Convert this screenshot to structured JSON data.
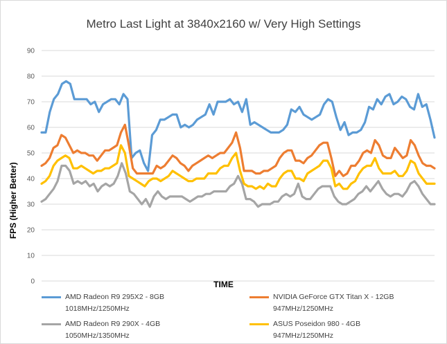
{
  "chart_data": {
    "type": "line",
    "title": "Metro Last Light at 3840x2160 w/ Very High Settings",
    "xlabel": "TIME",
    "ylabel": "FPS (Higher Better)",
    "ylim": [
      0,
      90
    ],
    "yticks": [
      0,
      10,
      20,
      30,
      40,
      50,
      60,
      70,
      80,
      90
    ],
    "grid": true,
    "legend_position": "bottom",
    "series": [
      {
        "name": "AMD Radeon R9 295X2 - 8GB",
        "detail": "1018MHz/1250MHz",
        "color": "#5b9bd5",
        "values": [
          58,
          58,
          66,
          71,
          73,
          77,
          78,
          77,
          71,
          71,
          71,
          71,
          69,
          70,
          66,
          69,
          70,
          71,
          71,
          69,
          73,
          71,
          48,
          50,
          51,
          46,
          43,
          57,
          59,
          63,
          63,
          64,
          65,
          65,
          60,
          61,
          60,
          61,
          63,
          64,
          65,
          69,
          65,
          70,
          70,
          70,
          71,
          69,
          70,
          66,
          71,
          61,
          62,
          61,
          60,
          59,
          58,
          58,
          58,
          59,
          61,
          67,
          66,
          68,
          65,
          64,
          63,
          64,
          65,
          69,
          71,
          70,
          64,
          59,
          62,
          57,
          58,
          58,
          59,
          62,
          68,
          67,
          71,
          69,
          72,
          73,
          69,
          70,
          72,
          71,
          68,
          67,
          73,
          68,
          69,
          63,
          56
        ]
      },
      {
        "name": "NVIDIA GeForce GTX Titan X - 12GB",
        "detail": "947MHz/1250MHz",
        "color": "#ed7d31",
        "values": [
          45,
          46,
          48,
          52,
          53,
          57,
          56,
          53,
          50,
          51,
          50,
          50,
          49,
          49,
          47,
          49,
          51,
          51,
          52,
          53,
          58,
          61,
          53,
          44,
          42,
          42,
          42,
          42,
          42,
          45,
          44,
          45,
          47,
          49,
          48,
          46,
          45,
          43,
          45,
          46,
          47,
          48,
          49,
          48,
          49,
          50,
          50,
          52,
          54,
          58,
          52,
          43,
          43,
          43,
          42,
          42,
          43,
          43,
          44,
          45,
          48,
          50,
          51,
          51,
          47,
          47,
          46,
          48,
          49,
          51,
          53,
          54,
          54,
          48,
          41,
          43,
          41,
          42,
          45,
          45,
          47,
          50,
          51,
          50,
          55,
          53,
          49,
          48,
          48,
          52,
          50,
          48,
          49,
          55,
          53,
          49,
          46,
          45,
          45,
          44
        ]
      },
      {
        "name": "AMD Radeon R9 290X - 4GB",
        "detail": "1050MHz/1350MHz",
        "color": "#a5a5a5",
        "values": [
          31,
          32,
          34,
          36,
          39,
          45,
          45,
          43,
          38,
          39,
          38,
          39,
          37,
          38,
          35,
          37,
          38,
          37,
          38,
          41,
          46,
          42,
          35,
          34,
          32,
          30,
          32,
          29,
          33,
          35,
          33,
          32,
          33,
          33,
          33,
          33,
          32,
          31,
          32,
          33,
          33,
          34,
          34,
          35,
          35,
          35,
          35,
          37,
          38,
          41,
          38,
          32,
          32,
          31,
          29,
          30,
          30,
          30,
          31,
          31,
          33,
          34,
          33,
          34,
          38,
          33,
          32,
          32,
          34,
          36,
          37,
          37,
          37,
          33,
          31,
          30,
          30,
          31,
          32,
          34,
          35,
          37,
          35,
          37,
          39,
          36,
          34,
          33,
          34,
          34,
          33,
          35,
          38,
          39,
          37,
          34,
          32,
          30,
          30
        ]
      },
      {
        "name": "ASUS Poseidon 980 - 4GB",
        "detail": "947MHz/1250MHz",
        "color": "#ffc000",
        "values": [
          38,
          39,
          41,
          45,
          47,
          48,
          49,
          48,
          44,
          44,
          45,
          44,
          43,
          42,
          43,
          43,
          44,
          44,
          45,
          46,
          53,
          50,
          41,
          40,
          39,
          38,
          37,
          39,
          40,
          40,
          39,
          40,
          41,
          43,
          42,
          41,
          40,
          39,
          39,
          40,
          40,
          40,
          42,
          42,
          42,
          44,
          45,
          45,
          48,
          50,
          43,
          38,
          37,
          37,
          36,
          37,
          36,
          38,
          37,
          37,
          40,
          42,
          43,
          43,
          40,
          40,
          39,
          42,
          43,
          44,
          45,
          47,
          47,
          44,
          37,
          38,
          36,
          36,
          38,
          39,
          42,
          44,
          45,
          45,
          48,
          44,
          42,
          42,
          42,
          43,
          41,
          41,
          43,
          47,
          46,
          42,
          40,
          38,
          38,
          38
        ]
      }
    ]
  }
}
